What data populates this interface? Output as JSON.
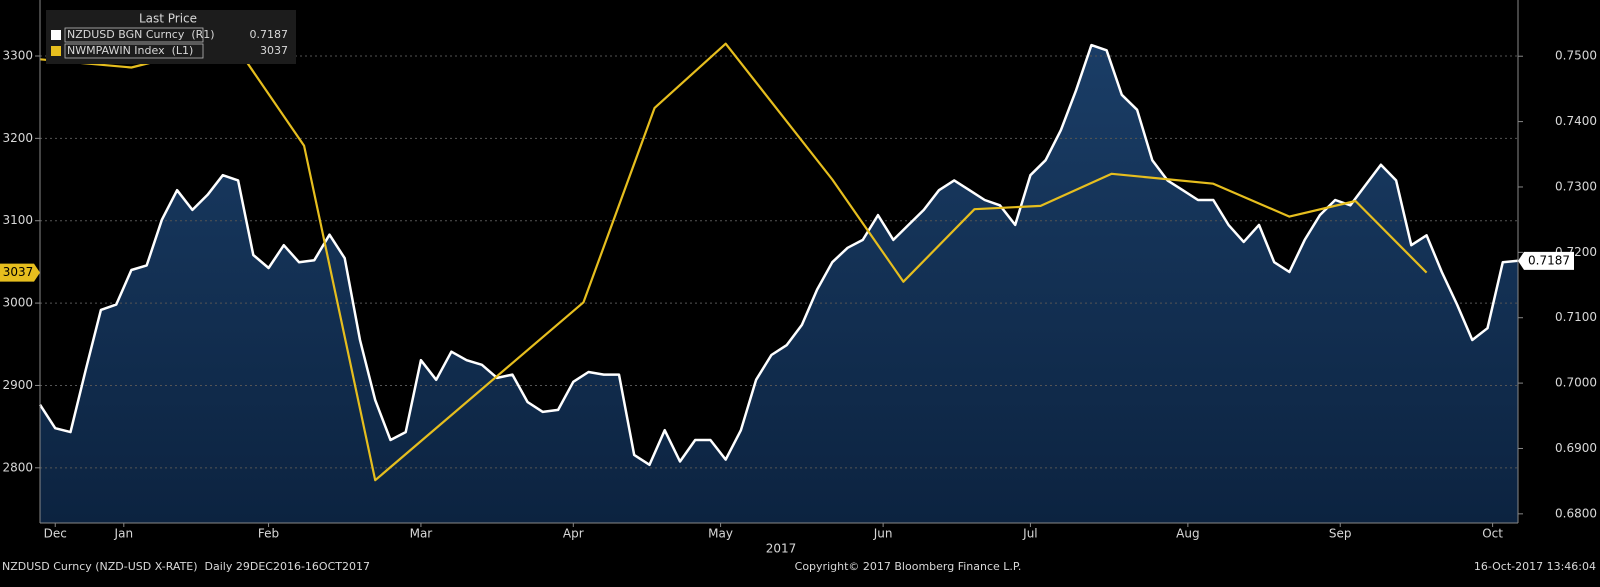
{
  "chart_data": {
    "type": "line",
    "legend_title": "Last Price",
    "x_label": "2017",
    "footer_left": "NZDUSD Curncy (NZD-USD X-RATE)  Daily 29DEC2016-16OCT2017",
    "footer_center": "Copyright© 2017 Bloomberg Finance L.P.",
    "footer_right": "16-Oct-2017 13:46:04",
    "xlim": [
      0,
      291
    ],
    "xticks": [
      {
        "value": 3,
        "label": "Dec"
      },
      {
        "value": 16.5,
        "label": "Jan"
      },
      {
        "value": 45,
        "label": "Feb"
      },
      {
        "value": 75,
        "label": "Mar"
      },
      {
        "value": 105,
        "label": "Apr"
      },
      {
        "value": 134,
        "label": "May"
      },
      {
        "value": 166,
        "label": "Jun"
      },
      {
        "value": 195,
        "label": "Jul"
      },
      {
        "value": 226,
        "label": "Aug"
      },
      {
        "value": 256,
        "label": "Sep"
      },
      {
        "value": 286,
        "label": "Oct"
      }
    ],
    "ylim": [
      2733,
      3368
    ],
    "yticks": [
      2800,
      2900,
      3000,
      3100,
      3200,
      3300
    ],
    "y2lim": [
      0.6786,
      0.7586
    ],
    "y2ticks": [
      {
        "value": 0.68,
        "label": "0.6800"
      },
      {
        "value": 0.69,
        "label": "0.6900"
      },
      {
        "value": 0.7,
        "label": "0.7000"
      },
      {
        "value": 0.71,
        "label": "0.7100"
      },
      {
        "value": 0.72,
        "label": "0.7200"
      },
      {
        "value": 0.73,
        "label": "0.7300"
      },
      {
        "value": 0.74,
        "label": "0.7400"
      },
      {
        "value": 0.75,
        "label": "0.7500"
      }
    ],
    "grid": true,
    "series": [
      {
        "name": "NZDUSD BGN Curncy  (R1)",
        "color": "#ffffff",
        "axis": "y2",
        "area": true,
        "x": [
          0,
          3,
          6,
          9,
          12,
          15,
          18,
          21,
          24,
          27,
          30,
          33,
          36,
          39,
          42,
          45,
          48,
          51,
          54,
          57,
          60,
          63,
          66,
          69,
          72,
          75,
          78,
          81,
          84,
          87,
          90,
          93,
          96,
          99,
          102,
          105,
          108,
          111,
          114,
          117,
          120,
          123,
          126,
          129,
          132,
          135,
          138,
          141,
          144,
          147,
          150,
          153,
          156,
          159,
          162,
          165,
          168,
          171,
          174,
          177,
          180,
          183,
          186,
          189,
          192,
          195,
          198,
          201,
          204,
          207,
          210,
          213,
          216,
          219,
          222,
          225,
          228,
          231,
          234,
          237,
          240,
          243,
          246,
          249,
          252,
          255,
          258,
          261,
          264,
          267,
          270,
          273,
          276,
          279,
          282,
          285,
          288,
          291
        ],
        "values": [
          0.6967,
          0.6931,
          0.6925,
          0.702,
          0.7112,
          0.712,
          0.7173,
          0.718,
          0.725,
          0.7295,
          0.7265,
          0.7288,
          0.7318,
          0.731,
          0.7196,
          0.7176,
          0.7211,
          0.7185,
          0.7188,
          0.7227,
          0.7191,
          0.7066,
          0.6974,
          0.6913,
          0.6925,
          0.7035,
          0.7005,
          0.7048,
          0.7035,
          0.7028,
          0.7008,
          0.7013,
          0.6971,
          0.6956,
          0.6959,
          0.7002,
          0.7017,
          0.7013,
          0.7013,
          0.689,
          0.6875,
          0.6928,
          0.688,
          0.6913,
          0.6913,
          0.6883,
          0.6928,
          0.7005,
          0.7043,
          0.7058,
          0.7089,
          0.7143,
          0.7185,
          0.7207,
          0.7219,
          0.7257,
          0.7219,
          0.7242,
          0.7265,
          0.7295,
          0.731,
          0.7295,
          0.728,
          0.7272,
          0.7242,
          0.7318,
          0.7341,
          0.7387,
          0.7448,
          0.7517,
          0.7509,
          0.7441,
          0.7418,
          0.7341,
          0.731,
          0.7295,
          0.728,
          0.728,
          0.7242,
          0.7216,
          0.7242,
          0.7185,
          0.717,
          0.7219,
          0.7257,
          0.728,
          0.7272,
          0.7303,
          0.7334,
          0.731,
          0.7211,
          0.7226,
          0.717,
          0.712,
          0.7066,
          0.7084,
          0.7185,
          0.7187
        ]
      },
      {
        "name": "NWMPAWIN Index  (L1)",
        "color": "#e6be1e",
        "axis": "y",
        "x": [
          0,
          18,
          38,
          52,
          66,
          107,
          121,
          135,
          156,
          170,
          184,
          197,
          211,
          231,
          246,
          259,
          273
        ],
        "values": [
          3296,
          3286,
          3317,
          3191,
          2785,
          3001,
          3237,
          3315,
          3150,
          3026,
          3114,
          3118,
          3157,
          3145,
          3105,
          3124,
          3037
        ]
      }
    ]
  }
}
